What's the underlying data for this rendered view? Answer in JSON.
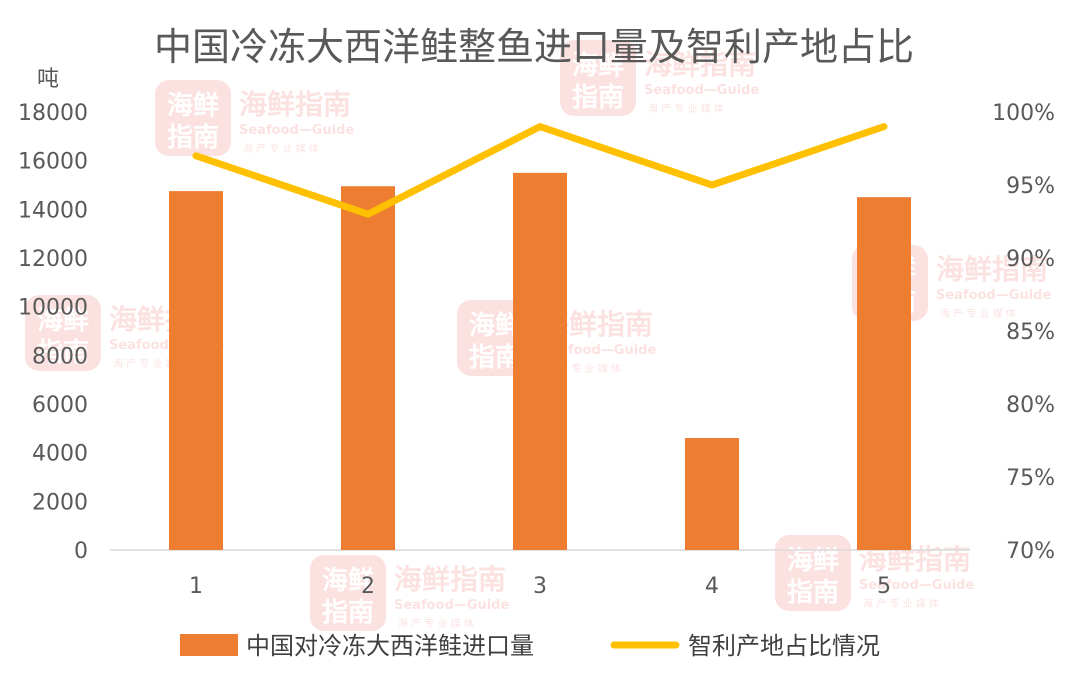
{
  "chart_data": {
    "type": "bar",
    "title": "中国冷冻大西洋鲑整鱼进口量及智利产地占比",
    "ylabel_left": "吨",
    "categories": [
      "1",
      "2",
      "3",
      "4",
      "5"
    ],
    "ylim_left": [
      0,
      18000
    ],
    "yticks_left": [
      "0",
      "2000",
      "4000",
      "6000",
      "8000",
      "10000",
      "12000",
      "14000",
      "16000",
      "18000"
    ],
    "ylim_right": [
      0.7,
      1.0
    ],
    "yticks_right": [
      "70%",
      "75%",
      "80%",
      "85%",
      "90%",
      "95%",
      "100%"
    ],
    "series": [
      {
        "name": "中国对冷冻大西洋鲑进口量",
        "type": "bar",
        "axis": "left",
        "color": "#ED7D31",
        "values": [
          14750,
          14950,
          15500,
          4600,
          14500
        ]
      },
      {
        "name": "智利产地占比情况",
        "type": "line",
        "axis": "right",
        "color": "#FFC000",
        "values": [
          0.97,
          0.93,
          0.99,
          0.95,
          0.99
        ]
      }
    ],
    "grid": false,
    "legend": "bottom"
  },
  "watermark": {
    "logo_text_top": "海鲜",
    "logo_text_bottom": "指南",
    "name": "海鲜指南",
    "sub": "Seafood—Guide",
    "tag": "海 产 专 业 媒 体",
    "color": "#E8584F"
  }
}
